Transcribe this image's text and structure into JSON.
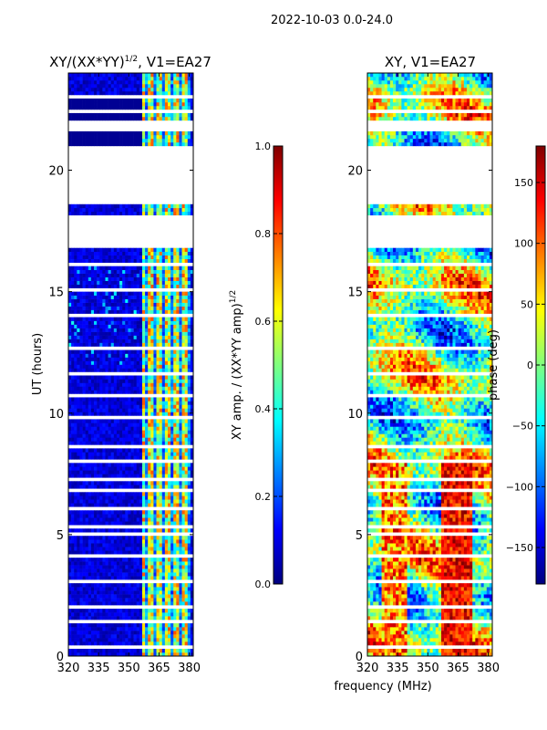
{
  "figure": {
    "suptitle": "2022-10-03 0.0-24.0",
    "xlabel": "frequency (MHz)"
  },
  "chart_data": [
    {
      "type": "heatmap",
      "title_main": "XY/(XX*YY)",
      "title_exp": "1/2",
      "title_tail": ", V1=EA27",
      "xlabel": "",
      "ylabel": "UT (hours)",
      "xlim": [
        320,
        382
      ],
      "ylim": [
        0,
        24
      ],
      "xticks": [
        320,
        335,
        350,
        365,
        380
      ],
      "yticks": [
        0,
        5,
        10,
        15,
        20
      ],
      "colorbar": {
        "label_main": "XY amp. / (XX*YY amp)",
        "label_exp": "1/2",
        "range": [
          0.0,
          1.0
        ],
        "ticks": [
          "0.0",
          "0.2",
          "0.4",
          "0.6",
          "0.8",
          "1.0"
        ],
        "colormap": "jet"
      }
    },
    {
      "type": "heatmap",
      "title_main": "XY, V1=EA27",
      "xlabel": "",
      "ylabel": "",
      "xlim": [
        320,
        382
      ],
      "ylim": [
        0,
        24
      ],
      "xticks": [
        320,
        335,
        350,
        365,
        380
      ],
      "yticks": [
        0,
        5,
        10,
        15,
        20
      ],
      "colorbar": {
        "label_main": "phase (deg)",
        "range": [
          -180,
          180
        ],
        "ticks": [
          "150",
          "100",
          "50",
          "0",
          "−50",
          "−100",
          "−150"
        ],
        "colormap": "jet"
      }
    }
  ],
  "colors": {
    "jet": [
      "#00007f",
      "#0000ff",
      "#007fff",
      "#00ffff",
      "#7fff7f",
      "#ffff00",
      "#ff7f00",
      "#ff0000",
      "#7f0000"
    ],
    "flag_gap": "#ffffff",
    "axis": "#000000"
  },
  "data_gaps_hours": [
    [
      0.3,
      0.45
    ],
    [
      1.35,
      1.45
    ],
    [
      1.6,
      1.7
    ],
    [
      2.0,
      2.1
    ],
    [
      2.5,
      2.6
    ],
    [
      3.05,
      3.15
    ],
    [
      3.4,
      3.5
    ],
    [
      4.05,
      4.15
    ],
    [
      4.6,
      4.7
    ],
    [
      5.0,
      5.1
    ],
    [
      5.3,
      5.4
    ],
    [
      6.0,
      6.15
    ],
    [
      6.7,
      6.85
    ],
    [
      7.2,
      7.3
    ],
    [
      7.6,
      7.7
    ],
    [
      8.0,
      8.1
    ],
    [
      8.5,
      8.7
    ],
    [
      9.7,
      9.85
    ],
    [
      10.7,
      10.8
    ],
    [
      11.5,
      11.75
    ],
    [
      12.1,
      12.2
    ],
    [
      12.6,
      12.7
    ],
    [
      14.0,
      14.1
    ],
    [
      15.0,
      15.1
    ],
    [
      16.05,
      16.15
    ],
    [
      16.8,
      18.1
    ],
    [
      18.25,
      18.3
    ],
    [
      18.6,
      21.0
    ],
    [
      21.65,
      22.0
    ],
    [
      22.3,
      22.55
    ],
    [
      22.95,
      23.1
    ]
  ]
}
